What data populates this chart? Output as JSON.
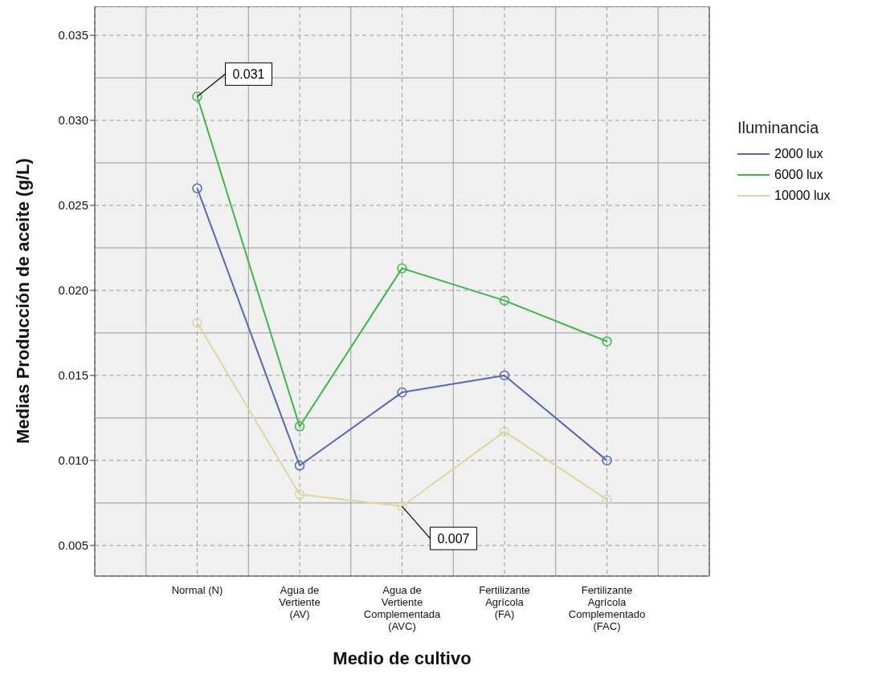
{
  "chart_data": {
    "type": "line",
    "xlabel": "Medio de cultivo",
    "ylabel": "Medias Producción de aceite (g/L)",
    "legend_title": "Iluminancia",
    "categories": [
      "Normal (N)",
      "Agua de Vertiente (AV)",
      "Agua de Vertiente Complementada (AVC)",
      "Fertilizante Agrícola (FA)",
      "Fertilizante Agrícola Complementado (FAC)"
    ],
    "series": [
      {
        "name": "2000 lux",
        "color": "#5965b5",
        "values": [
          0.026,
          0.0097,
          0.014,
          0.015,
          0.01
        ]
      },
      {
        "name": "6000 lux",
        "color": "#3fb54a",
        "values": [
          0.0314,
          0.012,
          0.0213,
          0.0194,
          0.017
        ]
      },
      {
        "name": "10000 lux",
        "color": "#dcd7a2",
        "values": [
          0.0181,
          0.008,
          0.0073,
          0.0117,
          0.0077
        ]
      }
    ],
    "ylim": [
      0.0032,
      0.0367
    ],
    "yticks": [
      {
        "value": 0.005,
        "label": "0.005"
      },
      {
        "value": 0.01,
        "label": "0.010"
      },
      {
        "value": 0.015,
        "label": "0.015"
      },
      {
        "value": 0.02,
        "label": "0.020"
      },
      {
        "value": 0.025,
        "label": "0.025"
      },
      {
        "value": 0.03,
        "label": "0.030"
      },
      {
        "value": 0.035,
        "label": "0.035"
      }
    ],
    "annotations": [
      {
        "text": "0.031",
        "x": "Normal (N)",
        "y": 0.0314
      },
      {
        "text": "0.007",
        "x": "Agua de Vertiente Complementada (AVC)",
        "y": 0.0073
      }
    ],
    "grid": true,
    "legend": "right",
    "marker": "circle",
    "line_style": "solid"
  }
}
